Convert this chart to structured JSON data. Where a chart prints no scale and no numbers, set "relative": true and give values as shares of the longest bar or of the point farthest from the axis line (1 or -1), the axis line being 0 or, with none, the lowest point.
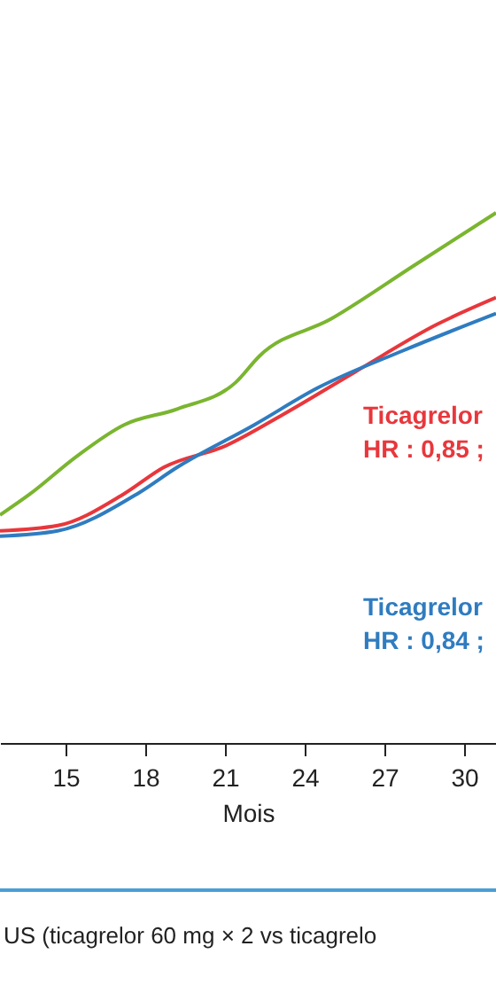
{
  "chart_data": {
    "type": "line",
    "relative": true,
    "xlabel": "Mois",
    "xlim": [
      12.53,
      31.2
    ],
    "xticks": [
      15,
      18,
      21,
      24,
      27,
      30
    ],
    "grid": false,
    "marker": "none",
    "line_style": "solid",
    "series": [
      {
        "color": "#7ab530",
        "x": [
          12.53,
          13.67,
          15.4,
          17.2,
          19.2,
          21.4,
          22.3,
          25.0,
          28.1,
          31.2
        ],
        "values": [
          0.43,
          0.47,
          0.54,
          0.6,
          0.63,
          0.68,
          0.73,
          0.8,
          0.9,
          1.0
        ]
      },
      {
        "name": "Ticagrelor\nHR : 0,85 ;",
        "color": "#e8373c",
        "x": [
          12.53,
          14.7,
          17.2,
          18.7,
          21.0,
          23.2,
          25.9,
          29.0,
          31.2
        ],
        "values": [
          0.4,
          0.41,
          0.47,
          0.52,
          0.56,
          0.62,
          0.7,
          0.79,
          0.84
        ]
      },
      {
        "name": "Ticagrelor\nHR : 0,84 ;",
        "color": "#2f7cc0",
        "x": [
          12.53,
          14.7,
          17.7,
          19.2,
          22.1,
          24.5,
          27.7,
          31.2
        ],
        "values": [
          0.39,
          0.4,
          0.47,
          0.52,
          0.6,
          0.67,
          0.74,
          0.81
        ]
      }
    ],
    "annotations": [
      "US (ticagrelor 60 mg × 2 vs ticagrelo"
    ]
  }
}
